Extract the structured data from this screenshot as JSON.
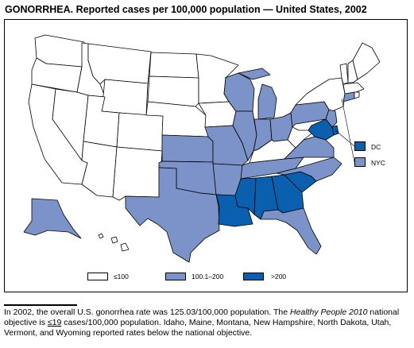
{
  "title": "GONORRHEA. Reported cases per 100,000 population — United States, 2002",
  "colors": {
    "low": "#ffffff",
    "mid": "#7b93c9",
    "high": "#0a5fae",
    "border": "#000000"
  },
  "legend": {
    "categories": [
      {
        "key": "low",
        "label": "≤100"
      },
      {
        "key": "mid",
        "label": "100.1–200"
      },
      {
        "key": "high",
        "label": ">200"
      }
    ],
    "insets": [
      {
        "key": "high",
        "label": "DC"
      },
      {
        "key": "mid",
        "label": "NYC"
      }
    ]
  },
  "map": {
    "states": {
      "WA": "low",
      "OR": "low",
      "CA": "low",
      "NV": "low",
      "ID": "low",
      "MT": "low",
      "WY": "low",
      "UT": "low",
      "AZ": "low",
      "CO": "low",
      "NM": "low",
      "ND": "low",
      "SD": "low",
      "NE": "low",
      "KS": "mid",
      "OK": "mid",
      "TX": "mid",
      "MN": "low",
      "IA": "low",
      "MO": "mid",
      "AR": "mid",
      "LA": "high",
      "WI": "mid",
      "IL": "mid",
      "MI": "mid",
      "IN": "mid",
      "OH": "mid",
      "KY": "low",
      "TN": "mid",
      "MS": "high",
      "AL": "high",
      "GA": "high",
      "FL": "mid",
      "SC": "high",
      "NC": "mid",
      "VA": "mid",
      "WV": "low",
      "PA": "mid",
      "NY": "low",
      "VT": "low",
      "NH": "low",
      "ME": "low",
      "MA": "low",
      "CT": "mid",
      "RI": "low",
      "NJ": "mid",
      "DE": "high",
      "MD": "high",
      "AK": "mid",
      "HI": "low"
    }
  },
  "footnote": {
    "part1": "In 2002, the overall U.S. gonorrhea rate was 125.03/100,000 population. The ",
    "italic": "Healthy People 2010",
    "part2": " national objective is ",
    "objective": "≤19",
    "part3": " cases/100,000 population. Idaho, Maine, Montana, New Hampshire, North Dakota, Utah, Vermont, and Wyoming reported rates below the national objective."
  }
}
